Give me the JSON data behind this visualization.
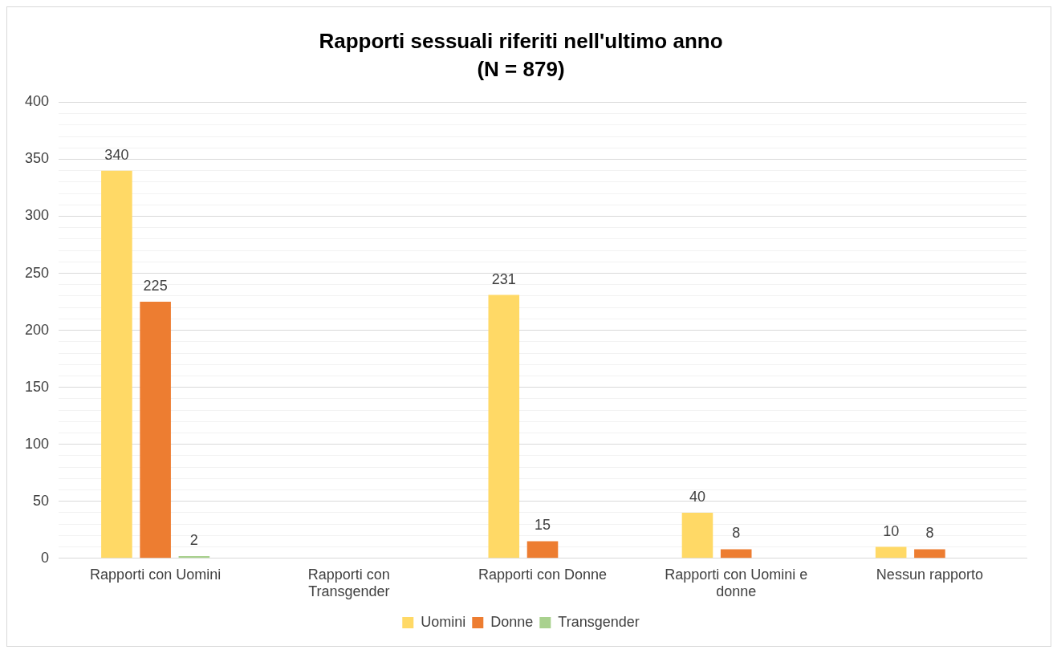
{
  "chart_data": {
    "type": "bar",
    "title": "Rapporti sessuali riferiti nell'ultimo anno",
    "subtitle": "(N = 879)",
    "categories": [
      "Rapporti con Uomini",
      "Rapporti con Transgender",
      "Rapporti con Donne",
      "Rapporti con Uomini e donne",
      "Nessun rapporto"
    ],
    "series": [
      {
        "name": "Uomini",
        "color": "#ffd966",
        "values": [
          340,
          null,
          231,
          40,
          10
        ]
      },
      {
        "name": "Donne",
        "color": "#ed7d31",
        "values": [
          225,
          null,
          15,
          8,
          8
        ]
      },
      {
        "name": "Transgender",
        "color": "#a9d18e",
        "values": [
          2,
          null,
          null,
          null,
          null
        ]
      }
    ],
    "ylim": [
      0,
      400
    ],
    "yticks": [
      0,
      {
        "value": 10,
        "label": null
      },
      {
        "value": 20,
        "label": null
      },
      {
        "value": 30,
        "label": null
      },
      {
        "value": 40,
        "label": null
      },
      50,
      {
        "value": 60,
        "label": null
      },
      {
        "value": 70,
        "label": null
      },
      {
        "value": 80,
        "label": null
      },
      {
        "value": 90,
        "label": null
      },
      100,
      {
        "value": 110,
        "label": null
      },
      {
        "value": 120,
        "label": null
      },
      {
        "value": 130,
        "label": null
      },
      {
        "value": 140,
        "label": null
      },
      150,
      {
        "value": 160,
        "label": null
      },
      {
        "value": 170,
        "label": null
      },
      {
        "value": 180,
        "label": null
      },
      {
        "value": 190,
        "label": null
      },
      200,
      {
        "value": 210,
        "label": null
      },
      {
        "value": 220,
        "label": null
      },
      {
        "value": 230,
        "label": null
      },
      {
        "value": 240,
        "label": null
      },
      250,
      {
        "value": 260,
        "label": null
      },
      {
        "value": 270,
        "label": null
      },
      {
        "value": 280,
        "label": null
      },
      {
        "value": 290,
        "label": null
      },
      300,
      {
        "value": 310,
        "label": null
      },
      {
        "value": 320,
        "label": null
      },
      {
        "value": 330,
        "label": null
      },
      {
        "value": 340,
        "label": null
      },
      350,
      {
        "value": 360,
        "label": null
      },
      {
        "value": 370,
        "label": null
      },
      {
        "value": 380,
        "label": null
      },
      {
        "value": 390,
        "label": null
      },
      400
    ],
    "grid": "y",
    "legend": "bottom",
    "data_labels": true
  }
}
